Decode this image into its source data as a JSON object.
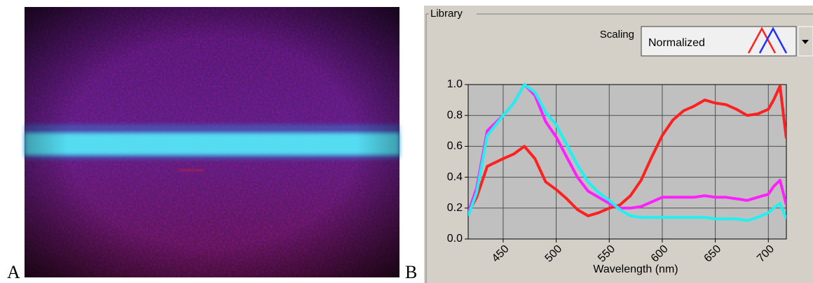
{
  "panel_labels": {
    "a": "A",
    "b": "B"
  },
  "library": {
    "group_label": "Library",
    "scaling_label": "Scaling",
    "scaling_value": "Normalized"
  },
  "chart_data": {
    "type": "line",
    "x_label": "Wavelength (nm)",
    "x": [
      417,
      425,
      435,
      450,
      460,
      470,
      480,
      490,
      500,
      510,
      520,
      530,
      540,
      550,
      560,
      570,
      580,
      590,
      600,
      610,
      620,
      630,
      640,
      650,
      660,
      670,
      680,
      690,
      700,
      705,
      711,
      717
    ],
    "series": [
      {
        "color": "#ff2020",
        "values": [
          0.17,
          0.27,
          0.47,
          0.52,
          0.55,
          0.6,
          0.52,
          0.37,
          0.32,
          0.26,
          0.19,
          0.15,
          0.17,
          0.2,
          0.22,
          0.28,
          0.38,
          0.53,
          0.67,
          0.77,
          0.83,
          0.86,
          0.9,
          0.88,
          0.87,
          0.84,
          0.8,
          0.81,
          0.84,
          0.9,
          0.99,
          0.65
        ]
      },
      {
        "color": "#ff20ff",
        "values": [
          0.17,
          0.33,
          0.7,
          0.8,
          0.88,
          1.0,
          0.93,
          0.76,
          0.66,
          0.53,
          0.4,
          0.31,
          0.27,
          0.23,
          0.2,
          0.2,
          0.21,
          0.24,
          0.27,
          0.27,
          0.27,
          0.27,
          0.28,
          0.27,
          0.27,
          0.26,
          0.25,
          0.27,
          0.29,
          0.34,
          0.38,
          0.22
        ]
      },
      {
        "color": "#20f0f0",
        "values": [
          0.15,
          0.3,
          0.67,
          0.8,
          0.88,
          1.0,
          0.95,
          0.82,
          0.74,
          0.61,
          0.48,
          0.37,
          0.3,
          0.25,
          0.19,
          0.15,
          0.14,
          0.14,
          0.14,
          0.14,
          0.14,
          0.14,
          0.14,
          0.13,
          0.13,
          0.13,
          0.12,
          0.14,
          0.17,
          0.2,
          0.23,
          0.13
        ]
      }
    ],
    "xlim": [
      417,
      717
    ],
    "xticks": [
      450,
      500,
      550,
      600,
      650,
      700
    ],
    "ylim": [
      0,
      1
    ],
    "yticks": [
      {
        "value": 0,
        "label": "0.0"
      },
      0.2,
      0.4,
      0.6,
      0.8,
      {
        "value": 1,
        "label": "1.0"
      }
    ],
    "grid": true
  }
}
